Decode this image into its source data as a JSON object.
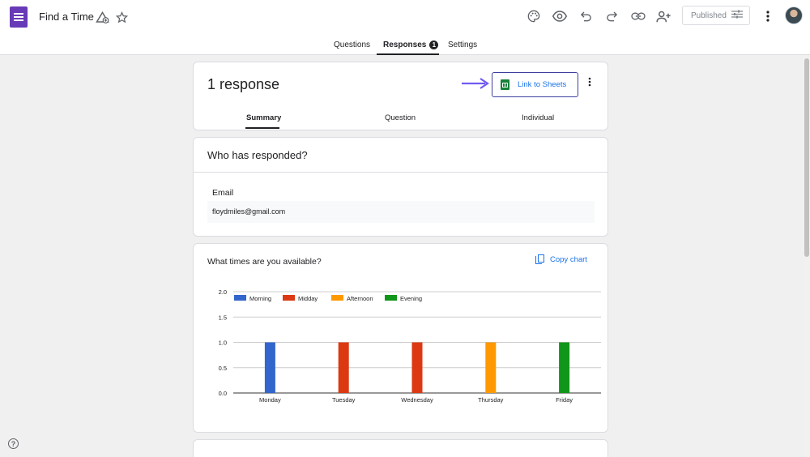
{
  "header": {
    "title": "Find a Time",
    "published_label": "Published",
    "icons": [
      "forms-icon",
      "move-to-folder-icon",
      "star-icon",
      "palette-icon",
      "preview-icon",
      "undo-icon",
      "redo-icon",
      "link-icon",
      "add-collaborator-icon",
      "settings-sliders-icon",
      "more-vert-icon",
      "avatar"
    ]
  },
  "tabs": [
    {
      "label": "Questions"
    },
    {
      "label": "Responses",
      "badge": "1",
      "active": true
    },
    {
      "label": "Settings"
    }
  ],
  "summary_card": {
    "title": "1 response",
    "link_sheets_label": "Link to Sheets",
    "sub_tabs": [
      {
        "label": "Summary",
        "active": true
      },
      {
        "label": "Question"
      },
      {
        "label": "Individual"
      }
    ]
  },
  "respondents_card": {
    "title": "Who has responded?",
    "email_label": "Email",
    "email_value": "floydmiles@gmail.com"
  },
  "question_card": {
    "title": "What times are you available?",
    "copy_chart_label": "Copy chart"
  },
  "chart_data": {
    "type": "bar",
    "categories": [
      "Monday",
      "Tuesday",
      "Wednesday",
      "Thursday",
      "Friday"
    ],
    "series": [
      {
        "name": "Morning",
        "color": "#3366cc",
        "values": [
          1,
          0,
          0,
          0,
          0
        ]
      },
      {
        "name": "Midday",
        "color": "#dc3912",
        "values": [
          0,
          1,
          1,
          0,
          0
        ]
      },
      {
        "name": "Afternoon",
        "color": "#ff9900",
        "values": [
          0,
          0,
          0,
          1,
          0
        ]
      },
      {
        "name": "Evening",
        "color": "#109618",
        "values": [
          0,
          0,
          0,
          0,
          1
        ]
      }
    ],
    "yticks": [
      "0.0",
      "0.5",
      "1.0",
      "1.5",
      "2.0"
    ],
    "ylim": [
      0,
      2
    ],
    "grid": true,
    "legend": "top-left"
  },
  "colors": {
    "accent": "#1a73e8",
    "forms_purple": "#673ab7",
    "arrow": "#6f5cf0"
  }
}
